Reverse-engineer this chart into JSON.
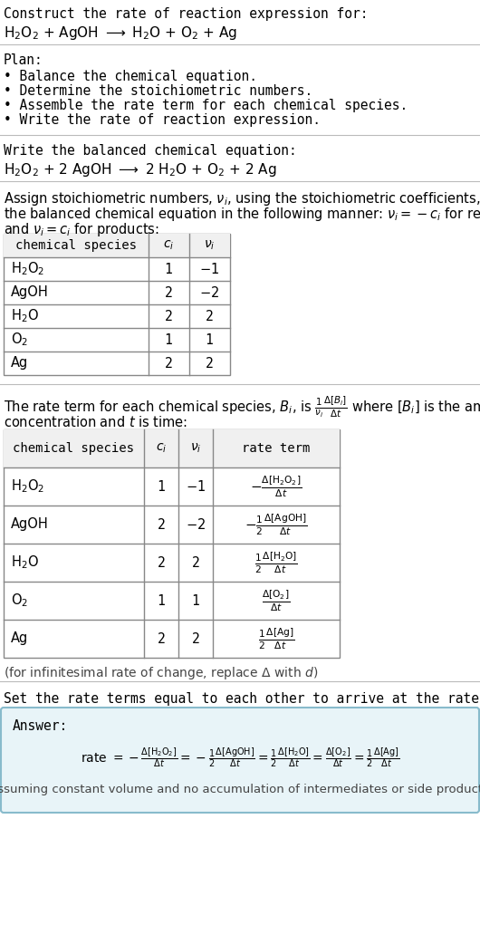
{
  "bg_color": "#ffffff",
  "text_color": "#000000",
  "separator_color": "#bbbbbb",
  "table_border_color": "#888888",
  "header_bg": "#f0f0f0",
  "answer_box_color": "#e8f4f8",
  "answer_box_border": "#88bbcc",
  "assuming_note": "(assuming constant volume and no accumulation of intermediates or side products)",
  "plan_items": [
    "• Balance the chemical equation.",
    "• Determine the stoichiometric numbers.",
    "• Assemble the rate term for each chemical species.",
    "• Write the rate of reaction expression."
  ],
  "t1_species": [
    "H_2O_2",
    "AgOH",
    "H_2O",
    "O_2",
    "Ag"
  ],
  "t1_ci": [
    "1",
    "2",
    "2",
    "1",
    "2"
  ],
  "t1_vi": [
    "-1",
    "-2",
    "2",
    "1",
    "2"
  ],
  "t2_species": [
    "H_2O_2",
    "AgOH",
    "H_2O",
    "O_2",
    "Ag"
  ],
  "t2_ci": [
    "1",
    "2",
    "2",
    "1",
    "2"
  ],
  "t2_vi": [
    "-1",
    "-2",
    "2",
    "1",
    "2"
  ]
}
